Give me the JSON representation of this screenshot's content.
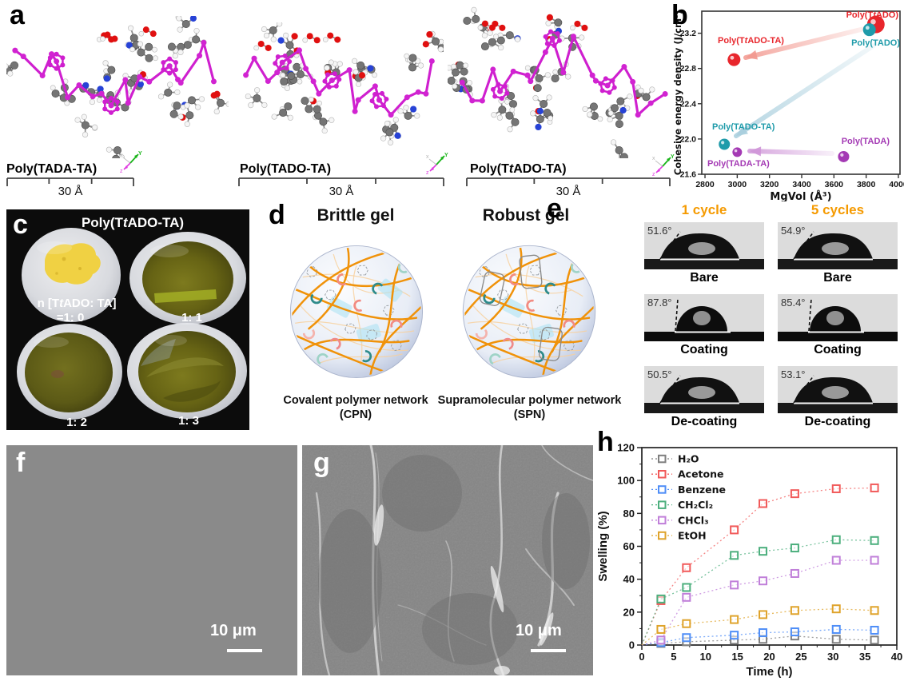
{
  "figure_type": "multi-panel scientific figure",
  "panels": {
    "a": {
      "label": "a",
      "molecules": [
        {
          "name": "Poly(TADA-TA)",
          "scale_bar": "30 Å"
        },
        {
          "name": "Poly(TADO-TA)",
          "scale_bar": "30 Å"
        },
        {
          "name": "Poly(TtADO-TA)",
          "scale_bar": "30 Å"
        }
      ],
      "atom_colors": {
        "carbon": "#757575",
        "hydrogen": "#f5f5f5",
        "oxygen": "#e01010",
        "nitrogen": "#2742d6",
        "backbone": "#cf1fcf"
      }
    },
    "b": {
      "label": "b"
    },
    "c": {
      "label": "c",
      "title": "Poly(TtADO-TA)",
      "ratio_caption_line1": "n [TtADO: TA]",
      "ratio_caption_line2": "=1: 0",
      "samples": [
        "1: 1",
        "1: 2",
        "1: 3"
      ]
    },
    "d": {
      "label": "d",
      "left": {
        "title": "Brittle gel",
        "caption": "Covalent polymer network (CPN)"
      },
      "right": {
        "title": "Robust gel",
        "caption": "Supramolecular polymer network (SPN)"
      },
      "strand_color": "#f09209"
    },
    "e": {
      "label": "e",
      "header_color": "#f59a00",
      "column_headers": [
        "1 cycle",
        "5 cycles"
      ],
      "rows": [
        {
          "label": "Bare",
          "angles": [
            "51.6°",
            "54.9°"
          ]
        },
        {
          "label": "Coating",
          "angles": [
            "87.8°",
            "85.4°"
          ]
        },
        {
          "label": "De-coating",
          "angles": [
            "50.5°",
            "53.1°"
          ]
        }
      ]
    },
    "f": {
      "label": "f",
      "scale_bar": "10 μm"
    },
    "g": {
      "label": "g",
      "scale_bar": "10 μm"
    },
    "h": {
      "label": "h"
    }
  },
  "chart_data": [
    {
      "type": "scatter",
      "panel": "b",
      "xlabel": "MgVol (Å³)",
      "ylabel": "Cohesive energy density (J/cm³)",
      "xlim": [
        2780,
        4010
      ],
      "ylim": [
        21.6,
        23.45
      ],
      "xticks": [
        2800,
        3000,
        3200,
        3400,
        3600,
        3800,
        4000
      ],
      "yticks": [
        "21.6",
        "22.0",
        "22.4",
        "22.8",
        "23.2"
      ],
      "points": [
        {
          "label": "Poly(TtADO)",
          "x": 3860,
          "y": 23.3,
          "color": "#e8262c",
          "size": 11
        },
        {
          "label": "Poly(TADO)",
          "x": 3820,
          "y": 23.24,
          "color": "#1f9baa",
          "size": 8
        },
        {
          "label": "Poly(TtADO-TA)",
          "x": 2980,
          "y": 22.9,
          "color": "#e8262c",
          "size": 8
        },
        {
          "label": "Poly(TADO-TA)",
          "x": 2920,
          "y": 21.94,
          "color": "#1f9baa",
          "size": 7
        },
        {
          "label": "Poly(TADA-TA)",
          "x": 3000,
          "y": 21.85,
          "color": "#a43ab4",
          "size": 6
        },
        {
          "label": "Poly(TADA)",
          "x": 3660,
          "y": 21.8,
          "color": "#a43ab4",
          "size": 7
        }
      ],
      "arrows": [
        {
          "from": "Poly(TtADO)",
          "to": "Poly(TtADO-TA)",
          "color": "#f2988f"
        },
        {
          "from": "Poly(TADO)",
          "to": "Poly(TADO-TA)",
          "color": "#a8cedd"
        },
        {
          "from": "Poly(TADA)",
          "to": "Poly(TADA-TA)",
          "color": "#cf96d8"
        }
      ]
    },
    {
      "type": "line",
      "panel": "h",
      "xlabel": "Time (h)",
      "ylabel": "Swelling (%)",
      "xlim": [
        0,
        40
      ],
      "ylim": [
        0,
        120
      ],
      "xticks": [
        0,
        5,
        10,
        15,
        20,
        25,
        30,
        35,
        40
      ],
      "yticks": [
        0,
        20,
        40,
        60,
        80,
        100,
        120
      ],
      "legend_position": "upper left",
      "marker": "open-square",
      "line_style": "dotted",
      "x": [
        0,
        3,
        7,
        14.5,
        19,
        24,
        30.5,
        36.5
      ],
      "series": [
        {
          "name": "H₂O",
          "color": "#7f7f7f",
          "values": [
            0,
            1,
            2,
            3,
            3.5,
            5.5,
            3.5,
            3
          ]
        },
        {
          "name": "Acetone",
          "color": "#f15a5a",
          "values": [
            0,
            27,
            47,
            70,
            86,
            92,
            95,
            95.5
          ]
        },
        {
          "name": "Benzene",
          "color": "#4f8ef7",
          "values": [
            0,
            1.5,
            4.5,
            6,
            7.5,
            8,
            9.5,
            9
          ]
        },
        {
          "name": "CH₂Cl₂",
          "color": "#4caf7d",
          "values": [
            0,
            28,
            35,
            54.5,
            57,
            59,
            64,
            63.5
          ]
        },
        {
          "name": "CHCl₃",
          "color": "#c07fd9",
          "values": [
            0,
            3,
            29,
            36.5,
            39,
            43.5,
            51.5,
            51.5
          ]
        },
        {
          "name": "EtOH",
          "color": "#dfa32b",
          "values": [
            0,
            9.5,
            13,
            15.5,
            18.5,
            21,
            22,
            21
          ]
        }
      ]
    }
  ]
}
